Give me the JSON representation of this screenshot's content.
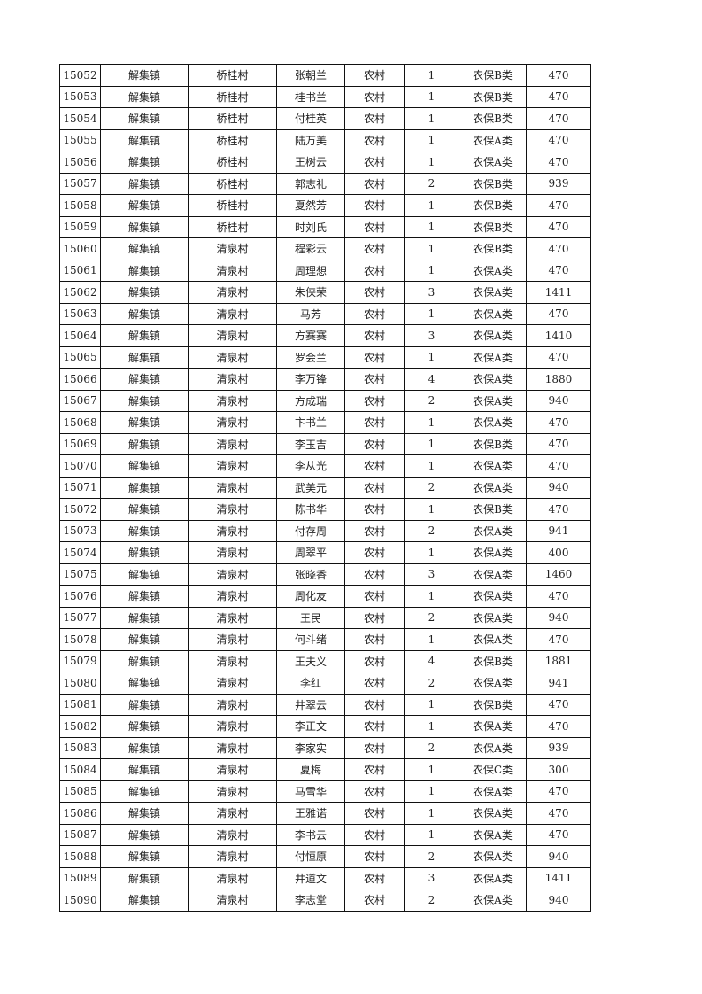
{
  "rows": [
    [
      "15052",
      "解集镇",
      "桥桂村",
      "张朝兰",
      "农村",
      "1",
      "农保B类",
      "470"
    ],
    [
      "15053",
      "解集镇",
      "桥桂村",
      "桂书兰",
      "农村",
      "1",
      "农保B类",
      "470"
    ],
    [
      "15054",
      "解集镇",
      "桥桂村",
      "付桂英",
      "农村",
      "1",
      "农保B类",
      "470"
    ],
    [
      "15055",
      "解集镇",
      "桥桂村",
      "陆万美",
      "农村",
      "1",
      "农保A类",
      "470"
    ],
    [
      "15056",
      "解集镇",
      "桥桂村",
      "王树云",
      "农村",
      "1",
      "农保A类",
      "470"
    ],
    [
      "15057",
      "解集镇",
      "桥桂村",
      "郭志礼",
      "农村",
      "2",
      "农保B类",
      "939"
    ],
    [
      "15058",
      "解集镇",
      "桥桂村",
      "夏然芳",
      "农村",
      "1",
      "农保B类",
      "470"
    ],
    [
      "15059",
      "解集镇",
      "桥桂村",
      "时刘氏",
      "农村",
      "1",
      "农保B类",
      "470"
    ],
    [
      "15060",
      "解集镇",
      "清泉村",
      "程彩云",
      "农村",
      "1",
      "农保B类",
      "470"
    ],
    [
      "15061",
      "解集镇",
      "清泉村",
      "周理想",
      "农村",
      "1",
      "农保A类",
      "470"
    ],
    [
      "15062",
      "解集镇",
      "清泉村",
      "朱侠荣",
      "农村",
      "3",
      "农保A类",
      "1411"
    ],
    [
      "15063",
      "解集镇",
      "清泉村",
      "马芳",
      "农村",
      "1",
      "农保A类",
      "470"
    ],
    [
      "15064",
      "解集镇",
      "清泉村",
      "方赛赛",
      "农村",
      "3",
      "农保A类",
      "1410"
    ],
    [
      "15065",
      "解集镇",
      "清泉村",
      "罗会兰",
      "农村",
      "1",
      "农保A类",
      "470"
    ],
    [
      "15066",
      "解集镇",
      "清泉村",
      "李万锋",
      "农村",
      "4",
      "农保A类",
      "1880"
    ],
    [
      "15067",
      "解集镇",
      "清泉村",
      "方成瑞",
      "农村",
      "2",
      "农保A类",
      "940"
    ],
    [
      "15068",
      "解集镇",
      "清泉村",
      "卞书兰",
      "农村",
      "1",
      "农保A类",
      "470"
    ],
    [
      "15069",
      "解集镇",
      "清泉村",
      "李玉吉",
      "农村",
      "1",
      "农保B类",
      "470"
    ],
    [
      "15070",
      "解集镇",
      "清泉村",
      "李从光",
      "农村",
      "1",
      "农保A类",
      "470"
    ],
    [
      "15071",
      "解集镇",
      "清泉村",
      "武美元",
      "农村",
      "2",
      "农保A类",
      "940"
    ],
    [
      "15072",
      "解集镇",
      "清泉村",
      "陈书华",
      "农村",
      "1",
      "农保B类",
      "470"
    ],
    [
      "15073",
      "解集镇",
      "清泉村",
      "付存周",
      "农村",
      "2",
      "农保A类",
      "941"
    ],
    [
      "15074",
      "解集镇",
      "清泉村",
      "周翠平",
      "农村",
      "1",
      "农保A类",
      "400"
    ],
    [
      "15075",
      "解集镇",
      "清泉村",
      "张晓香",
      "农村",
      "3",
      "农保A类",
      "1460"
    ],
    [
      "15076",
      "解集镇",
      "清泉村",
      "周化友",
      "农村",
      "1",
      "农保A类",
      "470"
    ],
    [
      "15077",
      "解集镇",
      "清泉村",
      "王民",
      "农村",
      "2",
      "农保A类",
      "940"
    ],
    [
      "15078",
      "解集镇",
      "清泉村",
      "何斗绪",
      "农村",
      "1",
      "农保A类",
      "470"
    ],
    [
      "15079",
      "解集镇",
      "清泉村",
      "王夫义",
      "农村",
      "4",
      "农保B类",
      "1881"
    ],
    [
      "15080",
      "解集镇",
      "清泉村",
      "李红",
      "农村",
      "2",
      "农保A类",
      "941"
    ],
    [
      "15081",
      "解集镇",
      "清泉村",
      "井翠云",
      "农村",
      "1",
      "农保B类",
      "470"
    ],
    [
      "15082",
      "解集镇",
      "清泉村",
      "李正文",
      "农村",
      "1",
      "农保A类",
      "470"
    ],
    [
      "15083",
      "解集镇",
      "清泉村",
      "李家实",
      "农村",
      "2",
      "农保A类",
      "939"
    ],
    [
      "15084",
      "解集镇",
      "清泉村",
      "夏梅",
      "农村",
      "1",
      "农保C类",
      "300"
    ],
    [
      "15085",
      "解集镇",
      "清泉村",
      "马雪华",
      "农村",
      "1",
      "农保A类",
      "470"
    ],
    [
      "15086",
      "解集镇",
      "清泉村",
      "王雅诺",
      "农村",
      "1",
      "农保A类",
      "470"
    ],
    [
      "15087",
      "解集镇",
      "清泉村",
      "李书云",
      "农村",
      "1",
      "农保A类",
      "470"
    ],
    [
      "15088",
      "解集镇",
      "清泉村",
      "付恒原",
      "农村",
      "2",
      "农保A类",
      "940"
    ],
    [
      "15089",
      "解集镇",
      "清泉村",
      "井道文",
      "农村",
      "3",
      "农保A类",
      "1411"
    ],
    [
      "15090",
      "解集镇",
      "清泉村",
      "李志堂",
      "农村",
      "2",
      "农保A类",
      "940"
    ]
  ]
}
